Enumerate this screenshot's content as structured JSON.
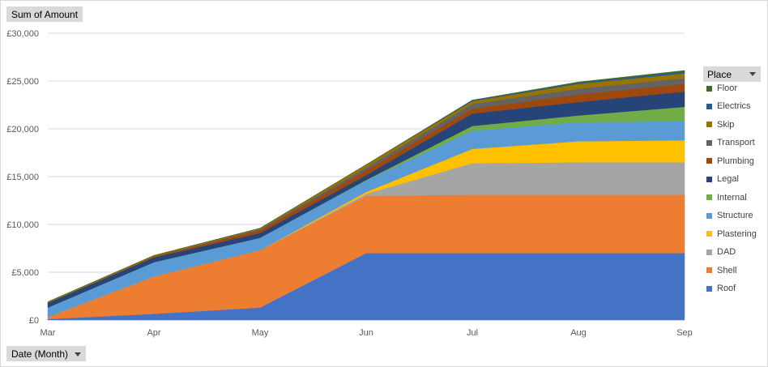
{
  "sum_button_label": "Sum of Amount",
  "date_button_label": "Date (Month)",
  "place_button_label": "Place",
  "chart_data": {
    "type": "area",
    "stacked": true,
    "x": [
      "Mar",
      "Apr",
      "May",
      "Jun",
      "Jul",
      "Aug",
      "Sep"
    ],
    "y_ticks": [
      "£0",
      "£5,000",
      "£10,000",
      "£15,000",
      "£20,000",
      "£25,000",
      "£30,000"
    ],
    "ylim": [
      0,
      30000
    ],
    "grid": true,
    "legend_position": "right",
    "legend_title": "Place",
    "series": [
      {
        "name": "Roof",
        "color": "#4472c4",
        "values": [
          100,
          650,
          1300,
          7000,
          7000,
          7000,
          7000
        ]
      },
      {
        "name": "Shell",
        "color": "#ed7d31",
        "values": [
          200,
          3900,
          6000,
          6000,
          6100,
          6100,
          6100
        ]
      },
      {
        "name": "DAD",
        "color": "#a5a5a5",
        "values": [
          0,
          0,
          0,
          200,
          3300,
          3400,
          3400
        ]
      },
      {
        "name": "Plastering",
        "color": "#ffc000",
        "values": [
          0,
          0,
          0,
          200,
          1500,
          2200,
          2300
        ]
      },
      {
        "name": "Structure",
        "color": "#5b9bd5",
        "values": [
          1000,
          1500,
          1300,
          1200,
          1900,
          2000,
          2000
        ]
      },
      {
        "name": "Internal",
        "color": "#70ad47",
        "values": [
          0,
          0,
          0,
          50,
          500,
          700,
          1500
        ]
      },
      {
        "name": "Legal",
        "color": "#264478",
        "values": [
          500,
          500,
          500,
          500,
          1300,
          1400,
          1600
        ]
      },
      {
        "name": "Plumbing",
        "color": "#9e480e",
        "values": [
          0,
          100,
          300,
          500,
          500,
          800,
          800
        ]
      },
      {
        "name": "Transport",
        "color": "#636363",
        "values": [
          0,
          0,
          100,
          300,
          500,
          600,
          600
        ]
      },
      {
        "name": "Skip",
        "color": "#997300",
        "values": [
          100,
          100,
          100,
          300,
          300,
          500,
          500
        ]
      },
      {
        "name": "Electrics",
        "color": "#255e91",
        "values": [
          0,
          0,
          0,
          0,
          100,
          100,
          200
        ]
      },
      {
        "name": "Floor",
        "color": "#43682b",
        "values": [
          0,
          0,
          0,
          0,
          0,
          100,
          100
        ]
      }
    ]
  }
}
